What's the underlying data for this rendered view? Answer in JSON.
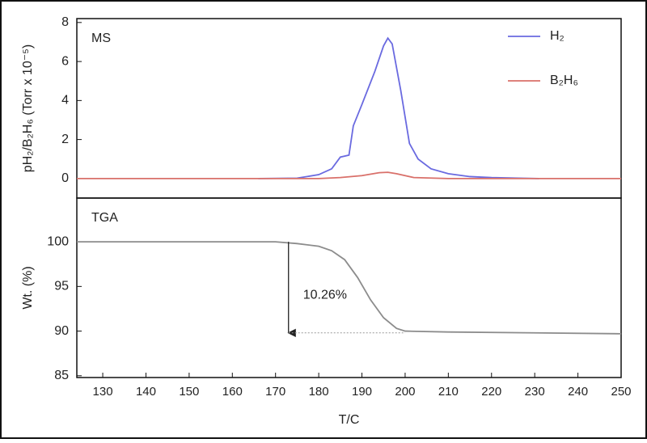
{
  "chart_data": [
    {
      "type": "line",
      "panel_label": "MS",
      "ylabel": "pH₂/B₂H₆ (Torr x 10⁻⁵)",
      "xlim": [
        124,
        250
      ],
      "ylim": [
        -1,
        8.2
      ],
      "yticks": [
        0,
        2,
        4,
        6,
        8
      ],
      "legend": "top-right",
      "series": [
        {
          "name": "H₂",
          "color": "#6a6ae0",
          "x": [
            166,
            175,
            180,
            183,
            185,
            187,
            188,
            190,
            193,
            195,
            196,
            197,
            199,
            201,
            203,
            206,
            210,
            215,
            220,
            231
          ],
          "values": [
            0,
            0.02,
            0.2,
            0.5,
            1.1,
            1.2,
            2.7,
            3.8,
            5.5,
            6.8,
            7.2,
            6.9,
            4.5,
            1.8,
            1.0,
            0.5,
            0.25,
            0.1,
            0.05,
            0
          ]
        },
        {
          "name": "B₂H₆",
          "color": "#d9706a",
          "x": [
            124,
            180,
            185,
            190,
            194,
            196,
            198,
            202,
            210,
            250
          ],
          "values": [
            0,
            0,
            0.05,
            0.15,
            0.3,
            0.32,
            0.25,
            0.05,
            0,
            0
          ]
        }
      ]
    },
    {
      "type": "line",
      "panel_label": "TGA",
      "ylabel": "Wt. (%)",
      "xlabel": "T/C",
      "xlim": [
        124,
        250
      ],
      "ylim": [
        84.8,
        104.9
      ],
      "yticks": [
        85,
        90,
        95,
        100
      ],
      "xticks": [
        130,
        140,
        150,
        160,
        170,
        180,
        190,
        200,
        210,
        220,
        230,
        240,
        250
      ],
      "series": [
        {
          "color": "#8c8c8c",
          "x": [
            124,
            170,
            175,
            180,
            183,
            186,
            189,
            192,
            195,
            198,
            200,
            210,
            230,
            250
          ],
          "values": [
            100,
            100,
            99.8,
            99.5,
            99,
            98,
            96,
            93.5,
            91.5,
            90.3,
            90,
            89.9,
            89.8,
            89.7
          ]
        }
      ],
      "annotation": {
        "text": "10.26%",
        "arrow": {
          "x": 173,
          "from": 100,
          "to": 89.8,
          "x_end": 200
        }
      }
    }
  ]
}
